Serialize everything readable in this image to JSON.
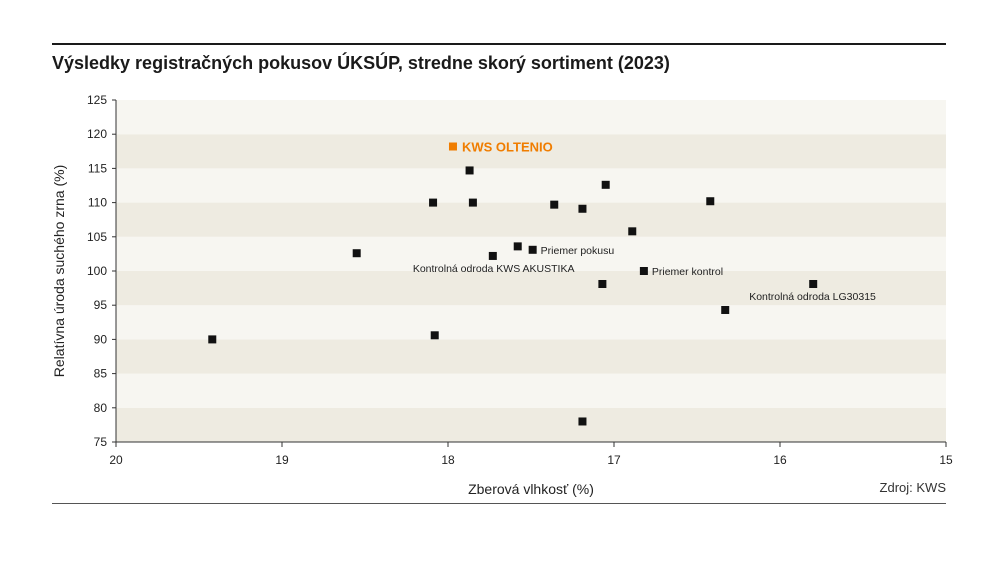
{
  "page": {
    "title": "Výsledky registračných pokusov ÚKSÚP, stredne skorý sortiment (2023)",
    "source": "Zdroj: KWS"
  },
  "colors": {
    "band_dark": "#eeebe1",
    "band_light": "#f7f6f1",
    "point": "#111111",
    "highlight": "#f07d00"
  },
  "chart_data": {
    "type": "scatter",
    "xlabel": "Zberová vlhkosť (%)",
    "ylabel": "Relatívna úroda suchého zrna (%)",
    "xlim": [
      20,
      15
    ],
    "ylim": [
      75,
      125
    ],
    "x_reversed": true,
    "x_ticks": [
      20,
      19,
      18,
      17,
      16,
      15
    ],
    "y_ticks": [
      75,
      80,
      85,
      90,
      95,
      100,
      105,
      110,
      115,
      120,
      125
    ],
    "grid": "horizontal alternating bands",
    "points": [
      {
        "x": 17.97,
        "y": 118.2,
        "label": "KWS OLTENIO",
        "highlight": true
      },
      {
        "x": 17.87,
        "y": 114.7,
        "label": ""
      },
      {
        "x": 17.05,
        "y": 112.6,
        "label": ""
      },
      {
        "x": 18.09,
        "y": 110.0,
        "label": ""
      },
      {
        "x": 17.85,
        "y": 110.0,
        "label": ""
      },
      {
        "x": 17.36,
        "y": 109.7,
        "label": ""
      },
      {
        "x": 17.19,
        "y": 109.1,
        "label": ""
      },
      {
        "x": 16.42,
        "y": 110.2,
        "label": ""
      },
      {
        "x": 16.89,
        "y": 105.8,
        "label": ""
      },
      {
        "x": 18.55,
        "y": 102.6,
        "label": ""
      },
      {
        "x": 17.58,
        "y": 103.6,
        "label": ""
      },
      {
        "x": 17.49,
        "y": 103.1,
        "label": "Priemer pokusu"
      },
      {
        "x": 17.73,
        "y": 102.2,
        "label": "Kontrolná odroda KWS AKUSTIKA"
      },
      {
        "x": 16.82,
        "y": 100.0,
        "label": "Priemer kontrol"
      },
      {
        "x": 17.07,
        "y": 98.1,
        "label": ""
      },
      {
        "x": 15.8,
        "y": 98.1,
        "label": "Kontrolná odroda LG30315"
      },
      {
        "x": 16.33,
        "y": 94.3,
        "label": ""
      },
      {
        "x": 19.42,
        "y": 90.0,
        "label": ""
      },
      {
        "x": 18.08,
        "y": 90.6,
        "label": ""
      },
      {
        "x": 17.19,
        "y": 78.0,
        "label": ""
      }
    ]
  }
}
